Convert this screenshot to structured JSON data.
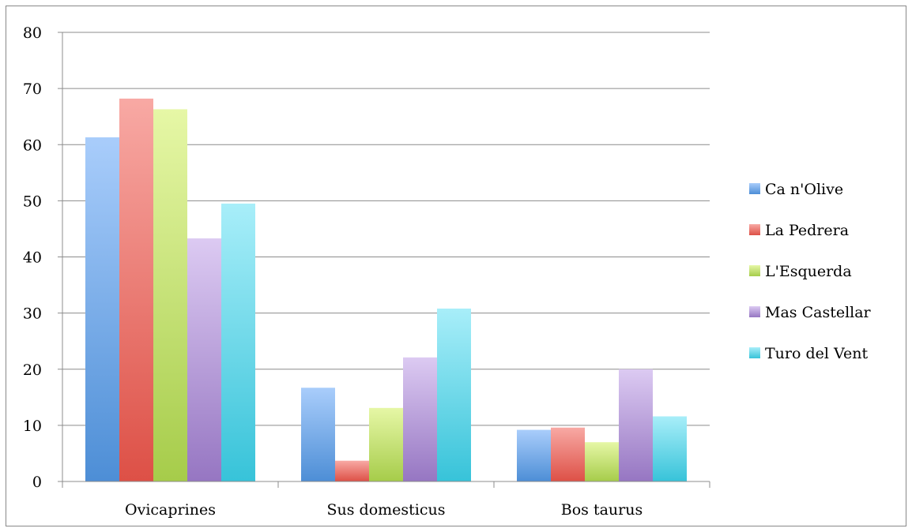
{
  "chart_data": {
    "type": "bar",
    "categories": [
      "Ovicaprines",
      "Sus domesticus",
      "Bos taurus"
    ],
    "series": [
      {
        "name": "Ca n'Olive",
        "values": [
          61.3,
          16.7,
          9.2
        ],
        "color_top": "#a9cdfb",
        "color_bottom": "#4d8ed6"
      },
      {
        "name": "La Pedrera",
        "values": [
          68.2,
          3.7,
          9.6
        ],
        "color_top": "#f8a9a4",
        "color_bottom": "#dd5046"
      },
      {
        "name": "L'Esquerda",
        "values": [
          66.3,
          13.1,
          7.0
        ],
        "color_top": "#e6f7a6",
        "color_bottom": "#a6cc4a"
      },
      {
        "name": "Mas Castellar",
        "values": [
          43.3,
          22.1,
          20.0
        ],
        "color_top": "#dccaf2",
        "color_bottom": "#9676c2"
      },
      {
        "name": "Turo del Vent",
        "values": [
          49.5,
          30.8,
          11.6
        ],
        "color_top": "#a8eef9",
        "color_bottom": "#37c3d9"
      }
    ],
    "ylim": [
      0,
      80
    ],
    "yticks": [
      0,
      10,
      20,
      30,
      40,
      50,
      60,
      70,
      80
    ],
    "grid": true,
    "legend_position": "right"
  }
}
